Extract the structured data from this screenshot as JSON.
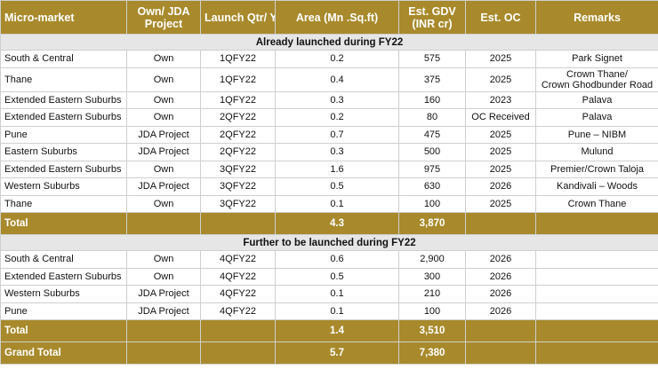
{
  "headers": [
    "Micro-market",
    "Own/ JDA Project",
    "Launch Qtr/ Yr",
    "Area (Mn .Sq.ft)",
    "Est. GDV (INR cr)",
    "Est. OC",
    "Remarks"
  ],
  "sections": [
    {
      "title": "Already launched during FY22",
      "rows": [
        [
          "South & Central",
          "Own",
          "1QFY22",
          "0.2",
          "575",
          "2025",
          "Park Signet"
        ],
        [
          "Thane",
          "Own",
          "1QFY22",
          "0.4",
          "375",
          "2025",
          "Crown Thane/ Crown Ghodbunder Road"
        ],
        [
          "Extended Eastern Suburbs",
          "Own",
          "1QFY22",
          "0.3",
          "160",
          "2023",
          "Palava"
        ],
        [
          "Extended Eastern Suburbs",
          "Own",
          "2QFY22",
          "0.2",
          "80",
          "OC Received",
          "Palava"
        ],
        [
          "Pune",
          "JDA Project",
          "2QFY22",
          "0.7",
          "475",
          "2025",
          "Pune – NIBM"
        ],
        [
          "Eastern Suburbs",
          "JDA Project",
          "2QFY22",
          "0.3",
          "500",
          "2025",
          "Mulund"
        ],
        [
          "Extended Eastern Suburbs",
          "Own",
          "3QFY22",
          "1.6",
          "975",
          "2025",
          "Premier/Crown Taloja"
        ],
        [
          "Western Suburbs",
          "JDA Project",
          "3QFY22",
          "0.5",
          "630",
          "2026",
          "Kandivali – Woods"
        ],
        [
          "Thane",
          "Own",
          "3QFY22",
          "0.1",
          "100",
          "2025",
          "Crown Thane"
        ]
      ],
      "total": {
        "label": "Total",
        "area": "4.3",
        "gdv": "3,870"
      }
    },
    {
      "title": "Further to be launched during FY22",
      "rows": [
        [
          "South & Central",
          "Own",
          "4QFY22",
          "0.6",
          "2,900",
          "2026",
          ""
        ],
        [
          "Extended Eastern Suburbs",
          "Own",
          "4QFY22",
          "0.5",
          "300",
          "2026",
          ""
        ],
        [
          "Western Suburbs",
          "JDA Project",
          "4QFY22",
          "0.1",
          "210",
          "2026",
          ""
        ],
        [
          "Pune",
          "JDA Project",
          "4QFY22",
          "0.1",
          "100",
          "2026",
          ""
        ]
      ],
      "total": {
        "label": "Total",
        "area": "1.4",
        "gdv": "3,510"
      }
    }
  ],
  "grand_total": {
    "label": "Grand Total",
    "area": "5.7",
    "gdv": "7,380"
  },
  "colors": {
    "gold": "#a88a2c",
    "section_bg": "#e6e6e6"
  }
}
